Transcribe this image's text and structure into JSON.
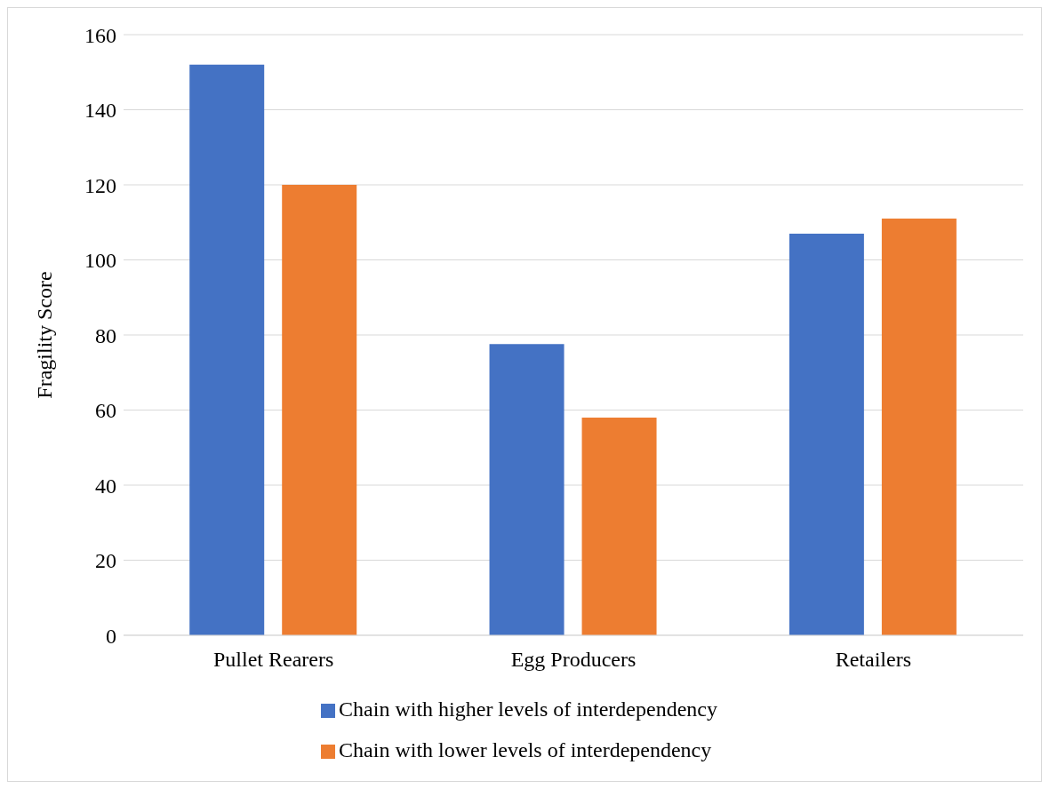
{
  "chart_data": {
    "type": "bar",
    "ylabel": "Fragility Score",
    "categories": [
      "Pullet Rearers",
      "Egg Producers",
      "Retailers"
    ],
    "series": [
      {
        "name": "Chain with higher levels of interdependency",
        "color": "#4472c4",
        "values": [
          152,
          77.6,
          107
        ]
      },
      {
        "name": "Chain with lower levels of interdependency",
        "color": "#ed7d31",
        "values": [
          120,
          58,
          111
        ]
      }
    ],
    "ylim": [
      0,
      160
    ],
    "yticks": [
      0,
      20,
      40,
      60,
      80,
      100,
      120,
      140,
      160
    ],
    "grid": "y",
    "legend": "bottom"
  }
}
